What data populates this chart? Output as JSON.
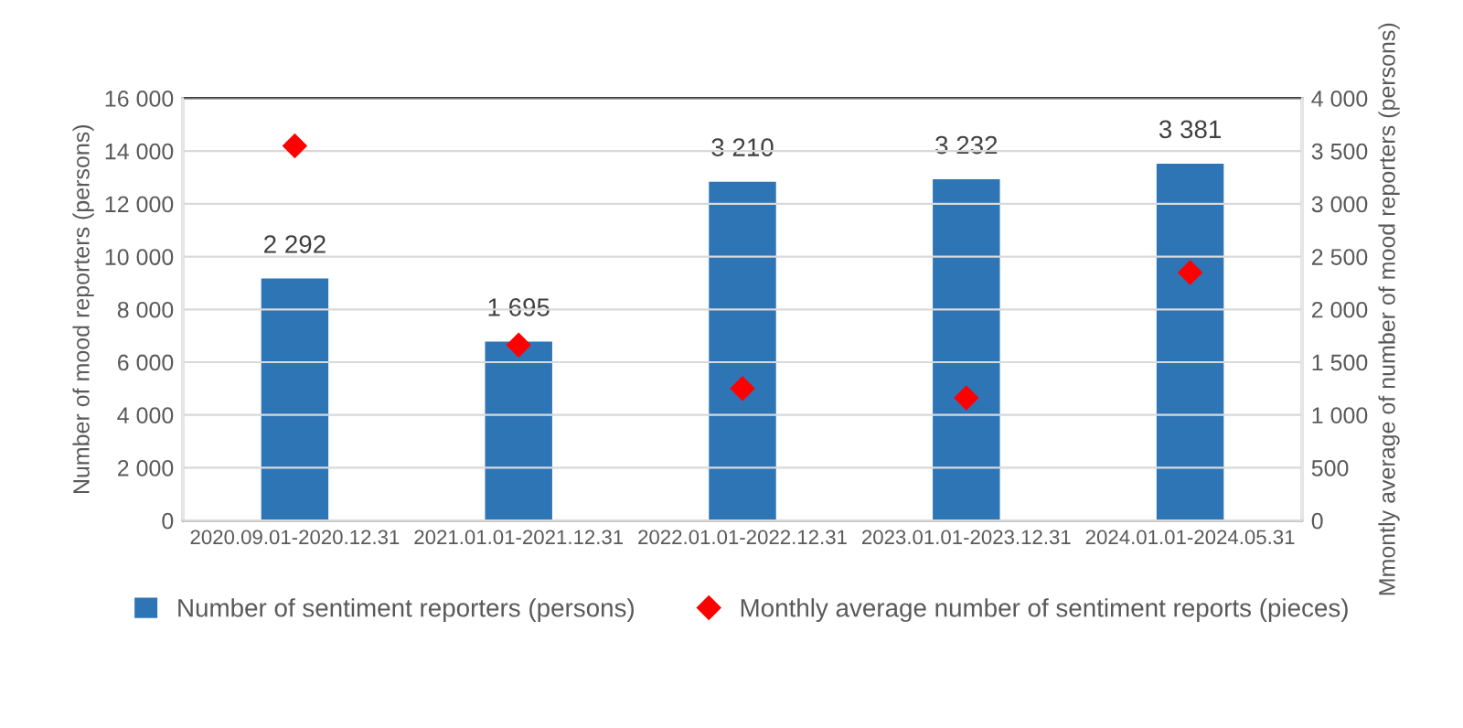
{
  "chart_data": {
    "type": "bar",
    "ylabel": "Number of mood reporters (persons)",
    "y2label": "Mmontly average of number of mood reporters (persons)",
    "categories": [
      "2020.09.01-2020.12.31",
      "2021.01.01-2021.12.31",
      "2022.01.01-2022.12.31",
      "2023.01.01-2023.12.31",
      "2024.01.01-2024.05.31"
    ],
    "series": [
      {
        "name": "Number of sentiment reporters (persons)",
        "axis": "y2",
        "color": "#2e75b6",
        "values": [
          2292,
          1695,
          3210,
          3232,
          3381
        ],
        "value_labels": [
          "2 292",
          "1 695",
          "3 210",
          "3 232",
          "3 381"
        ]
      },
      {
        "name": "Monthly average number of sentiment reports (pieces)",
        "type": "scatter",
        "color": "#ff0000",
        "marker": "diamond",
        "values": [
          14200,
          6650,
          5000,
          4650,
          9400
        ]
      }
    ],
    "ylim": [
      0,
      16000
    ],
    "yticks": [
      0,
      {
        "value": 2000,
        "label": "2 000"
      },
      {
        "value": 4000,
        "label": "4 000"
      },
      {
        "value": 6000,
        "label": "6 000"
      },
      {
        "value": 8000,
        "label": "8 000"
      },
      {
        "value": 10000,
        "label": "10 000"
      },
      {
        "value": 12000,
        "label": "12 000"
      },
      {
        "value": 14000,
        "label": "14 000"
      },
      {
        "value": 16000,
        "label": "16 000"
      }
    ],
    "y2lim": [
      0,
      4000
    ],
    "y2ticks": [
      0,
      500,
      {
        "value": 1000,
        "label": "1 000"
      },
      {
        "value": 1500,
        "label": "1 500"
      },
      {
        "value": 2000,
        "label": "2 000"
      },
      {
        "value": 2500,
        "label": "2 500"
      },
      {
        "value": 3000,
        "label": "3 000"
      },
      {
        "value": 3500,
        "label": "3 500"
      },
      {
        "value": 4000,
        "label": "4 000"
      }
    ],
    "grid": "y",
    "legend": "bottom"
  }
}
